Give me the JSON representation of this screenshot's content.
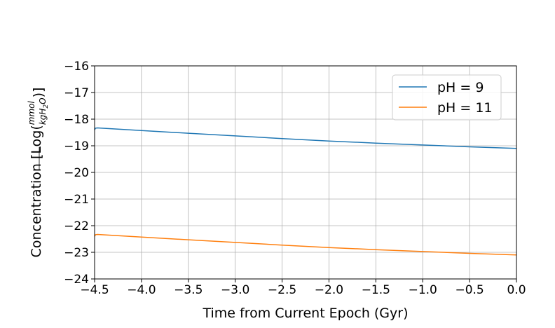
{
  "chart_data": {
    "type": "line",
    "title": "",
    "xlabel": "Time from Current Epoch (Gyr)",
    "ylabel": "Concentration [Log(",
    "ylabel_fraction": {
      "numerator": "mmol",
      "denominator": "kgH",
      "subscript": "2",
      "after_subscript": "O"
    },
    "ylabel_suffix": ")]",
    "xlim": [
      -4.5,
      0.0
    ],
    "ylim": [
      -24,
      -16
    ],
    "x_ticks": [
      -4.5,
      -4.0,
      -3.5,
      -3.0,
      -2.5,
      -2.0,
      -1.5,
      -1.0,
      -0.5,
      0.0
    ],
    "x_tick_labels": [
      "−4.5",
      "−4.0",
      "−3.5",
      "−3.0",
      "−2.5",
      "−2.0",
      "−1.5",
      "−1.0",
      "−0.5",
      "0.0"
    ],
    "y_ticks": [
      -16,
      -17,
      -18,
      -19,
      -20,
      -21,
      -22,
      -23,
      -24
    ],
    "y_tick_labels": [
      "−16",
      "−17",
      "−18",
      "−19",
      "−20",
      "−21",
      "−22",
      "−23",
      "−24"
    ],
    "grid": true,
    "legend_position": "top-right",
    "series": [
      {
        "name": "pH = 9",
        "color": "#1f77b4",
        "x": [
          -4.5,
          -4.49,
          -4.47,
          -4.0,
          -3.5,
          -3.0,
          -2.5,
          -2.0,
          -1.5,
          -1.0,
          -0.5,
          0.0
        ],
        "y": [
          -18.4,
          -18.34,
          -18.33,
          -18.43,
          -18.53,
          -18.63,
          -18.73,
          -18.82,
          -18.9,
          -18.97,
          -19.04,
          -19.1
        ]
      },
      {
        "name": "pH = 11",
        "color": "#ff7f0e",
        "x": [
          -4.5,
          -4.49,
          -4.47,
          -4.0,
          -3.5,
          -3.0,
          -2.5,
          -2.0,
          -1.5,
          -1.0,
          -0.5,
          0.0
        ],
        "y": [
          -22.4,
          -22.34,
          -22.33,
          -22.43,
          -22.53,
          -22.63,
          -22.73,
          -22.82,
          -22.9,
          -22.97,
          -23.04,
          -23.1
        ]
      }
    ]
  }
}
